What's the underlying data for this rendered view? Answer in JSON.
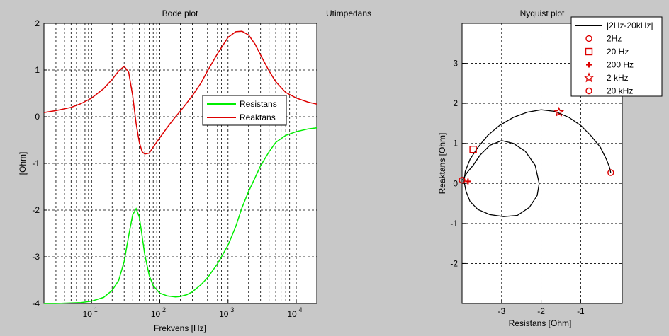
{
  "window": {
    "title": "Utimpedans"
  },
  "chart_data": [
    {
      "type": "line",
      "title": "Bode plot",
      "xlabel": "Frekvens [Hz]",
      "ylabel": "[Ohm]",
      "xscale": "log",
      "xlim": [
        2,
        20000
      ],
      "ylim": [
        -4,
        2
      ],
      "xticks": [
        {
          "base": "10",
          "exp": "1",
          "value": 10
        },
        {
          "base": "10",
          "exp": "2",
          "value": 100
        },
        {
          "base": "10",
          "exp": "3",
          "value": 1000
        },
        {
          "base": "10",
          "exp": "4",
          "value": 10000
        }
      ],
      "yticks": [
        "2",
        "1",
        "0",
        "-1",
        "-2",
        "-3",
        "-4"
      ],
      "grid": true,
      "legend": {
        "placement": "center-right",
        "entries": [
          "Resistans",
          "Reaktans"
        ]
      },
      "colors": {
        "Resistans": "#00ee00",
        "Reaktans": "#dd0000"
      },
      "x": [
        2,
        3,
        5,
        7,
        10,
        15,
        20,
        25,
        30,
        35,
        40,
        45,
        50,
        55,
        60,
        70,
        80,
        100,
        130,
        170,
        200,
        250,
        300,
        400,
        500,
        700,
        1000,
        1300,
        1600,
        2000,
        2500,
        3000,
        4000,
        5000,
        7000,
        10000,
        15000,
        20000
      ],
      "series": [
        {
          "name": "Resistans",
          "values": [
            -4.0,
            -4.0,
            -3.99,
            -3.98,
            -3.95,
            -3.87,
            -3.72,
            -3.5,
            -3.1,
            -2.55,
            -2.1,
            -1.97,
            -2.15,
            -2.55,
            -2.95,
            -3.4,
            -3.62,
            -3.78,
            -3.84,
            -3.86,
            -3.85,
            -3.81,
            -3.75,
            -3.6,
            -3.45,
            -3.15,
            -2.75,
            -2.35,
            -1.95,
            -1.6,
            -1.3,
            -1.05,
            -0.75,
            -0.55,
            -0.4,
            -0.32,
            -0.26,
            -0.24
          ]
        },
        {
          "name": "Reaktans",
          "values": [
            0.09,
            0.13,
            0.2,
            0.28,
            0.4,
            0.6,
            0.8,
            0.98,
            1.08,
            0.95,
            0.45,
            -0.15,
            -0.55,
            -0.75,
            -0.8,
            -0.78,
            -0.65,
            -0.45,
            -0.22,
            0.0,
            0.12,
            0.3,
            0.45,
            0.72,
            0.98,
            1.35,
            1.7,
            1.82,
            1.83,
            1.75,
            1.55,
            1.32,
            0.98,
            0.75,
            0.52,
            0.4,
            0.31,
            0.27
          ]
        }
      ]
    },
    {
      "type": "line",
      "title": "Nyquist plot",
      "xlabel": "Resistans [Ohm]",
      "ylabel": "Reaktans [Ohm]",
      "xlim": [
        -4,
        0.05
      ],
      "ylim": [
        -3,
        4
      ],
      "xticks": [
        "-3",
        "-2",
        "-1"
      ],
      "yticks": [
        "3",
        "2",
        "1",
        "0",
        "-1",
        "-2"
      ],
      "grid": true,
      "legend": {
        "placement": "top-right",
        "entries": [
          "|2Hz-20kHz|",
          "2Hz",
          "20 Hz",
          "200 Hz",
          "2 kHz",
          "20 kHz"
        ]
      },
      "colors": {
        "curve": "#000000",
        "markers": "#dd0000"
      },
      "series": [
        {
          "name": "|2Hz-20kHz|",
          "x": [
            -3.98,
            -3.96,
            -3.92,
            -3.85,
            -3.72,
            -3.55,
            -3.3,
            -3.0,
            -2.7,
            -2.4,
            -2.15,
            -2.05,
            -2.1,
            -2.3,
            -2.6,
            -2.95,
            -3.3,
            -3.6,
            -3.8,
            -3.9,
            -3.95,
            -3.92,
            -3.8,
            -3.6,
            -3.35,
            -3.05,
            -2.7,
            -2.35,
            -2.0,
            -1.65,
            -1.3,
            -1.0,
            -0.75,
            -0.5,
            -0.35,
            -0.27,
            -0.24
          ],
          "y": [
            0.09,
            0.13,
            0.2,
            0.3,
            0.45,
            0.7,
            0.95,
            1.07,
            1.0,
            0.8,
            0.45,
            0.0,
            -0.3,
            -0.6,
            -0.8,
            -0.83,
            -0.78,
            -0.65,
            -0.45,
            -0.2,
            0.05,
            0.3,
            0.6,
            0.9,
            1.2,
            1.45,
            1.65,
            1.78,
            1.84,
            1.8,
            1.65,
            1.45,
            1.2,
            0.9,
            0.6,
            0.4,
            0.27
          ]
        }
      ],
      "markers": [
        {
          "label": "2Hz",
          "shape": "circle",
          "x": -4.0,
          "y": 0.08
        },
        {
          "label": "20 Hz",
          "shape": "square",
          "x": -3.72,
          "y": 0.85
        },
        {
          "label": "200 Hz",
          "shape": "plus",
          "x": -3.85,
          "y": 0.05
        },
        {
          "label": "2 kHz",
          "shape": "star",
          "x": -1.55,
          "y": 1.78
        },
        {
          "label": "20 kHz",
          "shape": "circle",
          "x": -0.24,
          "y": 0.27
        }
      ]
    }
  ]
}
